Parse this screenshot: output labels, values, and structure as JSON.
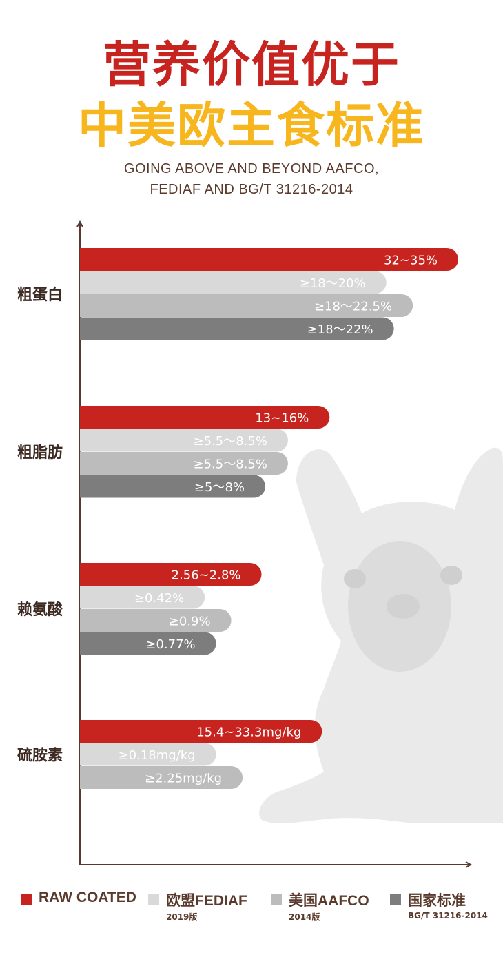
{
  "header": {
    "title_line1": "营养价值优于",
    "title_line2": "中美欧主食标准",
    "subtitle_line1": "GOING ABOVE AND BEYOND AAFCO,",
    "subtitle_line2": "FEDIAF AND BG/T 31216-2014"
  },
  "colors": {
    "raw_coated": "#c8241f",
    "fediaf": "#d9d9d9",
    "aafco": "#bcbcbc",
    "national": "#7d7d7d",
    "axis": "#5a3a2c",
    "label_text": "#ffffff"
  },
  "legend": [
    {
      "name": "RAW COATED",
      "note": "",
      "color_key": "raw_coated"
    },
    {
      "name": "欧盟FEDIAF",
      "note": "2019版",
      "color_key": "fediaf"
    },
    {
      "name": "美国AAFCO",
      "note": "2014版",
      "color_key": "aafco"
    },
    {
      "name": "国家标准",
      "note": "BG/T 31216-2014",
      "color_key": "national"
    }
  ],
  "chart_data": {
    "type": "bar",
    "orientation": "horizontal",
    "title": "",
    "xlabel": "",
    "ylabel": "",
    "background_image": "french-bulldog-photo",
    "categories": [
      "粗蛋白",
      "粗脂肪",
      "赖氨酸",
      "硫胺素"
    ],
    "groups": [
      {
        "category": "粗蛋白",
        "bars": [
          {
            "series": "RAW COATED",
            "label": "32~35%",
            "value": 1.0
          },
          {
            "series": "欧盟FEDIAF",
            "label": "≥18～20%",
            "value": 0.81
          },
          {
            "series": "美国AAFCO",
            "label": "≥18～22.5%",
            "value": 0.88
          },
          {
            "series": "国家标准",
            "label": "≥18～22%",
            "value": 0.83
          }
        ]
      },
      {
        "category": "粗脂肪",
        "bars": [
          {
            "series": "RAW COATED",
            "label": "13~16%",
            "value": 0.66
          },
          {
            "series": "欧盟FEDIAF",
            "label": "≥5.5～8.5%",
            "value": 0.55
          },
          {
            "series": "美国AAFCO",
            "label": "≥5.5～8.5%",
            "value": 0.55
          },
          {
            "series": "国家标准",
            "label": "≥5～8%",
            "value": 0.49
          }
        ]
      },
      {
        "category": "赖氨酸",
        "bars": [
          {
            "series": "RAW COATED",
            "label": "2.56~2.8%",
            "value": 0.48
          },
          {
            "series": "欧盟FEDIAF",
            "label": "≥0.42%",
            "value": 0.33
          },
          {
            "series": "美国AAFCO",
            "label": "≥0.9%",
            "value": 0.4
          },
          {
            "series": "国家标准",
            "label": "≥0.77%",
            "value": 0.36
          }
        ]
      },
      {
        "category": "硫胺素",
        "bars": [
          {
            "series": "RAW COATED",
            "label": "15.4~33.3mg/kg",
            "value": 0.64
          },
          {
            "series": "欧盟FEDIAF",
            "label": "≥0.18mg/kg",
            "value": 0.36
          },
          {
            "series": "美国AAFCO",
            "label": "≥2.25mg/kg",
            "value": 0.43
          }
        ]
      }
    ],
    "series": [
      {
        "name": "RAW COATED"
      },
      {
        "name": "欧盟FEDIAF"
      },
      {
        "name": "美国AAFCO"
      },
      {
        "name": "国家标准"
      }
    ],
    "xlim": [
      0,
      1
    ],
    "grid": false,
    "legend_position": "bottom"
  }
}
